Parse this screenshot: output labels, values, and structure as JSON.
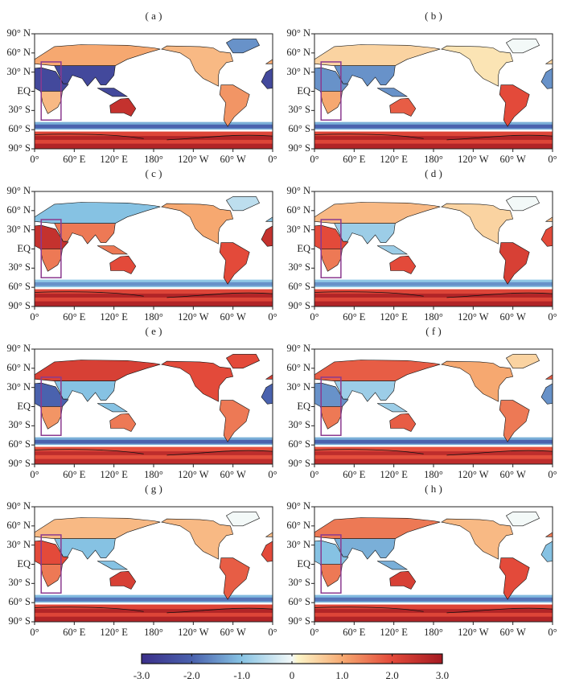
{
  "chart_data": {
    "type": "map",
    "lat_ticks": [
      "90° N",
      "60° N",
      "30° N",
      "EQ",
      "30° S",
      "60° S",
      "90° S"
    ],
    "lon_ticks": [
      "0°",
      "60° E",
      "120° E",
      "180°",
      "120° W",
      "60° W",
      "0°"
    ],
    "highlight_box": {
      "lon": [
        10,
        40
      ],
      "lat": [
        -45,
        46
      ],
      "color": "#8b3a8f"
    },
    "colorbar": {
      "range": [
        -3,
        3
      ],
      "ticks": [
        "-3.0",
        "-2.0",
        "-1.0",
        "0",
        "1.0",
        "2.0",
        "3.0"
      ]
    },
    "panels": [
      {
        "label": "( a )",
        "values": {
          "africa_north": -2.5,
          "africa_south": 0.8,
          "eurasia_north": 1.0,
          "south_asia": -2.5,
          "australia": 2.5,
          "north_america": 0.8,
          "south_america": 1.2,
          "greenland": -1.5,
          "southern_ocean": -2.0,
          "antarctica": 2.8
        }
      },
      {
        "label": "( b )",
        "values": {
          "africa_north": -1.5,
          "africa_south": 1.0,
          "eurasia_north": 0.5,
          "south_asia": -1.5,
          "australia": 1.8,
          "north_america": 0.3,
          "south_america": 2.0,
          "greenland": 0,
          "southern_ocean": -2.0,
          "antarctica": 2.8
        }
      },
      {
        "label": "( c )",
        "values": {
          "africa_north": 2.5,
          "africa_south": 1.5,
          "eurasia_north": -1.0,
          "south_asia": 1.5,
          "australia": 2.0,
          "north_america": 1.0,
          "south_america": 2.0,
          "greenland": -0.5,
          "southern_ocean": -1.5,
          "antarctica": 2.8
        }
      },
      {
        "label": "( d )",
        "values": {
          "africa_north": 2.0,
          "africa_south": 1.5,
          "eurasia_north": 0.8,
          "south_asia": -0.8,
          "australia": 2.0,
          "north_america": 0.5,
          "south_america": 2.2,
          "greenland": 0,
          "southern_ocean": -1.5,
          "antarctica": 2.8
        }
      },
      {
        "label": "( e )",
        "values": {
          "africa_north": -2.0,
          "africa_south": 1.2,
          "eurasia_north": 2.2,
          "south_asia": -1.0,
          "australia": 1.5,
          "north_america": 2.0,
          "south_america": 1.5,
          "greenland": 2.0,
          "southern_ocean": -2.0,
          "antarctica": 2.6
        }
      },
      {
        "label": "( f )",
        "values": {
          "africa_north": -1.5,
          "africa_south": 1.5,
          "eurasia_north": 1.8,
          "south_asia": -0.8,
          "australia": 1.8,
          "north_america": 1.0,
          "south_america": 1.5,
          "greenland": 0.5,
          "southern_ocean": -2.0,
          "antarctica": 2.6
        }
      },
      {
        "label": "( g )",
        "values": {
          "africa_north": 2.0,
          "africa_south": 1.5,
          "eurasia_north": 0.8,
          "south_asia": -1.0,
          "australia": 2.2,
          "north_america": 0.8,
          "south_america": 1.8,
          "greenland": 0,
          "southern_ocean": -1.8,
          "antarctica": 2.8
        }
      },
      {
        "label": "( h )",
        "values": {
          "africa_north": -1.0,
          "africa_south": 1.5,
          "eurasia_north": 1.5,
          "south_asia": -1.2,
          "australia": 2.2,
          "north_america": 0.8,
          "south_america": 2.0,
          "greenland": 0,
          "southern_ocean": -1.8,
          "antarctica": 2.8
        }
      }
    ]
  }
}
